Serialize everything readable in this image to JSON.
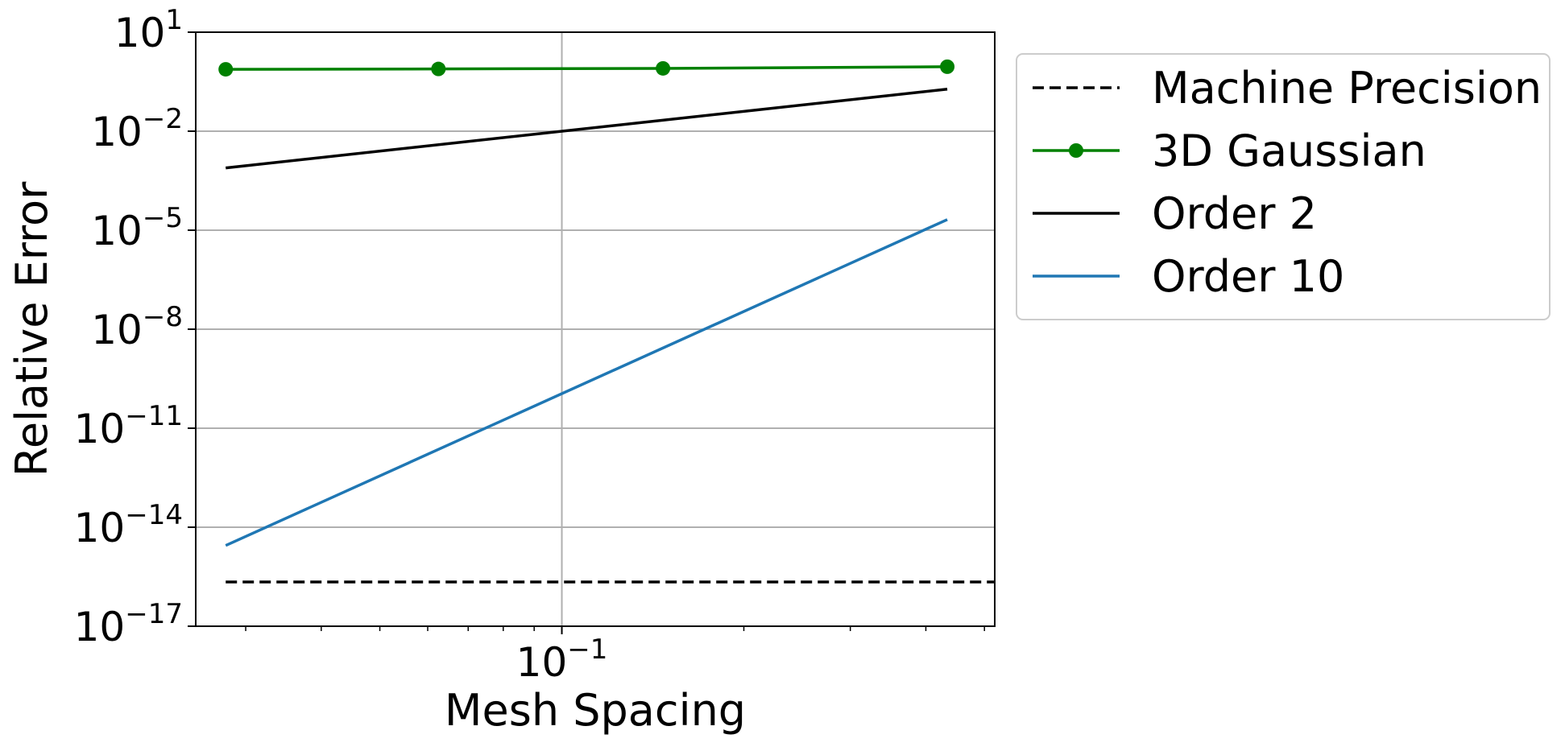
{
  "chart_data": {
    "type": "line",
    "xlabel": "Mesh Spacing",
    "ylabel": "Relative Error",
    "x_scale": "log",
    "y_scale": "log",
    "xlim": [
      0.0248,
      0.52
    ],
    "ylim": [
      1e-17,
      10
    ],
    "x_ticks": [
      {
        "value": 0.1,
        "base": "10",
        "exp": "−1"
      }
    ],
    "y_ticks": [
      {
        "value": 10.0,
        "base": "10",
        "exp": "1"
      },
      {
        "value": 0.01,
        "base": "10",
        "exp": "−2"
      },
      {
        "value": 1e-05,
        "base": "10",
        "exp": "−5"
      },
      {
        "value": 1e-08,
        "base": "10",
        "exp": "−8"
      },
      {
        "value": 1e-11,
        "base": "10",
        "exp": "−11"
      },
      {
        "value": 1e-14,
        "base": "10",
        "exp": "−14"
      },
      {
        "value": 1e-17,
        "base": "10",
        "exp": "−17"
      }
    ],
    "grid": true,
    "legend_position": "outside-right-top",
    "series": [
      {
        "name": "Machine Precision",
        "color": "#000000",
        "style": "dashed",
        "marker": "none",
        "x": [
          0.0278,
          0.52
        ],
        "y": [
          2.2e-16,
          2.2e-16
        ]
      },
      {
        "name": "3D Gaussian",
        "color": "#008000",
        "style": "solid",
        "marker": "circle",
        "x": [
          0.0278,
          0.0625,
          0.147,
          0.434
        ],
        "y": [
          0.75,
          0.77,
          0.8,
          0.9
        ]
      },
      {
        "name": "Order 2",
        "color": "#000000",
        "style": "solid",
        "marker": "none",
        "x": [
          0.0278,
          0.434
        ],
        "y": [
          0.00077,
          0.188
        ]
      },
      {
        "name": "Order 10",
        "color": "#1f77b4",
        "style": "solid",
        "marker": "none",
        "x": [
          0.0278,
          0.434
        ],
        "y": [
          2.8e-15,
          2.1e-05
        ]
      }
    ]
  }
}
